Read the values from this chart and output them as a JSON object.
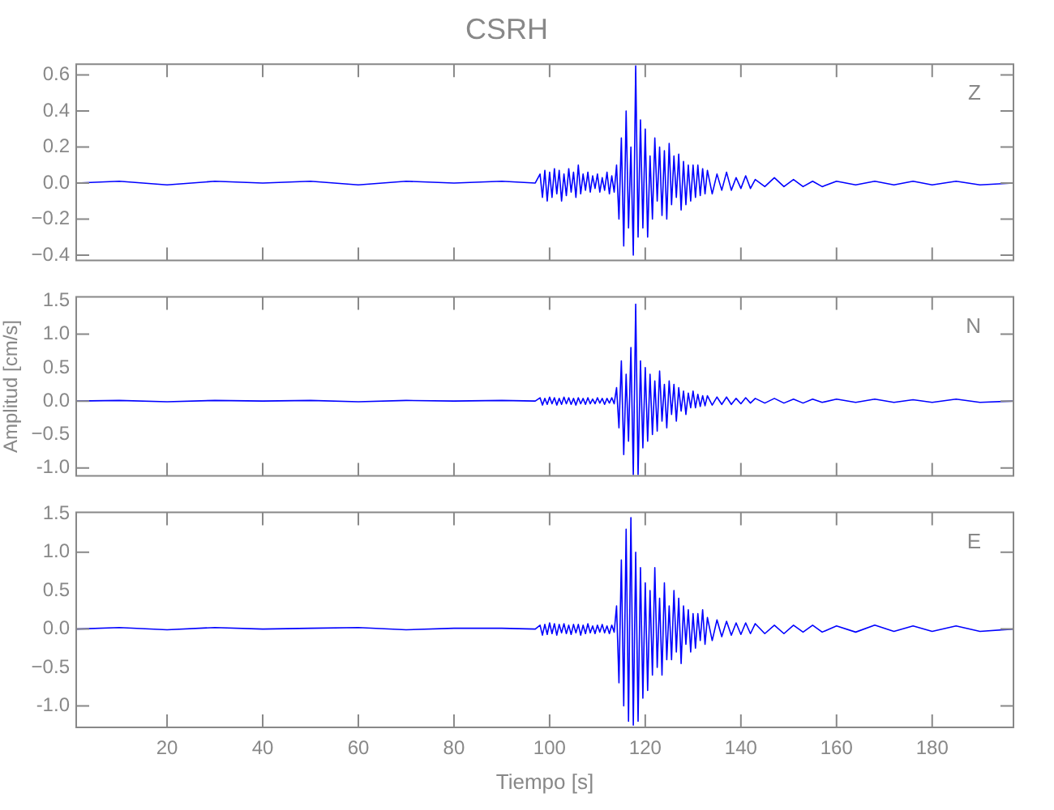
{
  "chart_data": [
    {
      "type": "line",
      "title": "CSRH",
      "annotations": [
        "Z"
      ],
      "tick_labels": "y",
      "x": [
        1,
        10,
        20,
        30,
        40,
        50,
        60,
        70,
        80,
        90,
        97,
        98,
        98.5,
        99,
        99.5,
        100,
        100.5,
        101,
        101.5,
        102,
        102.5,
        103,
        103.5,
        104,
        104.5,
        105,
        105.5,
        106,
        106.5,
        107,
        107.5,
        108,
        108.5,
        109,
        109.5,
        110,
        110.5,
        111,
        111.5,
        112,
        112.5,
        113,
        113.5,
        114,
        114.5,
        115,
        115.5,
        116,
        116.5,
        117,
        117.5,
        118,
        118.5,
        119,
        119.5,
        120,
        120.5,
        121,
        121.5,
        122,
        122.5,
        123,
        123.5,
        124,
        124.5,
        125,
        125.5,
        126,
        126.5,
        127,
        127.5,
        128,
        128.5,
        129,
        129.5,
        130,
        130.5,
        131,
        131.5,
        132,
        132.5,
        133,
        134,
        135,
        136,
        137,
        138,
        139,
        140,
        141,
        142,
        143,
        145,
        147,
        149,
        151,
        153,
        155,
        157,
        160,
        164,
        168,
        172,
        176,
        180,
        185,
        190,
        197
      ],
      "series": [
        {
          "color": "#0000ff",
          "values": [
            0,
            0.01,
            -0.01,
            0.01,
            0,
            0.01,
            -0.01,
            0.01,
            0,
            0.01,
            0,
            0.05,
            -0.08,
            0.07,
            -0.1,
            0.06,
            -0.08,
            0.08,
            -0.06,
            0.07,
            -0.1,
            0.05,
            -0.07,
            0.08,
            -0.05,
            0.06,
            -0.08,
            0.1,
            -0.06,
            0.05,
            -0.04,
            0.06,
            -0.05,
            0.04,
            -0.03,
            0.05,
            -0.05,
            0.03,
            -0.04,
            0.06,
            -0.06,
            0.04,
            -0.05,
            0.1,
            -0.2,
            0.25,
            -0.35,
            0.4,
            -0.25,
            0.2,
            -0.4,
            0.65,
            -0.3,
            0.35,
            -0.25,
            0.3,
            -0.3,
            0.15,
            -0.2,
            0.25,
            -0.1,
            0.2,
            -0.18,
            0.18,
            -0.2,
            0.22,
            -0.12,
            0.15,
            -0.08,
            0.16,
            -0.15,
            0.12,
            -0.12,
            0.1,
            -0.1,
            0.1,
            -0.08,
            0.1,
            -0.07,
            0.08,
            -0.06,
            0.07,
            -0.06,
            0.05,
            -0.04,
            0.06,
            -0.04,
            0.03,
            -0.03,
            0.04,
            -0.03,
            0.02,
            -0.02,
            0.03,
            -0.02,
            0.02,
            -0.02,
            0.01,
            -0.02,
            0.01,
            -0.01,
            0.01,
            -0.01,
            0.01,
            -0.01,
            0.01,
            -0.01,
            0
          ]
        }
      ],
      "xlim": [
        1,
        197
      ],
      "xticks": [
        20,
        40,
        60,
        80,
        100,
        120,
        140,
        160,
        180
      ],
      "ylim": [
        -0.43,
        0.66
      ],
      "yticks": [
        -0.4,
        -0.2,
        {
          "value": 0,
          "label": "0.0"
        },
        0.2,
        0.4,
        0.6
      ]
    },
    {
      "type": "line",
      "ylabel": "Amplitud [cm/s]",
      "annotations": [
        "N"
      ],
      "tick_labels": "y",
      "x": [
        1,
        10,
        20,
        30,
        40,
        50,
        60,
        70,
        80,
        90,
        97,
        98,
        98.5,
        99,
        99.5,
        100,
        100.5,
        101,
        101.5,
        102,
        102.5,
        103,
        103.5,
        104,
        104.5,
        105,
        105.5,
        106,
        106.5,
        107,
        107.5,
        108,
        108.5,
        109,
        109.5,
        110,
        110.5,
        111,
        111.5,
        112,
        112.5,
        113,
        113.5,
        114,
        114.5,
        115,
        115.5,
        116,
        116.5,
        117,
        117.5,
        118,
        118.5,
        119,
        119.5,
        120,
        120.5,
        121,
        121.5,
        122,
        122.5,
        123,
        123.5,
        124,
        124.5,
        125,
        125.5,
        126,
        126.5,
        127,
        127.5,
        128,
        128.5,
        129,
        129.5,
        130,
        130.5,
        131,
        131.5,
        132,
        132.5,
        133,
        134,
        135,
        136,
        137,
        138,
        139,
        140,
        141,
        142,
        143,
        145,
        147,
        149,
        151,
        153,
        155,
        157,
        160,
        164,
        168,
        172,
        176,
        180,
        185,
        190,
        197
      ],
      "series": [
        {
          "color": "#0000ff",
          "values": [
            0,
            0.01,
            -0.01,
            0.01,
            0,
            0.01,
            -0.01,
            0.01,
            0,
            0.01,
            0,
            0.05,
            -0.06,
            0.04,
            -0.05,
            0.06,
            -0.04,
            0.05,
            -0.06,
            0.04,
            -0.05,
            0.06,
            -0.04,
            0.05,
            -0.05,
            0.04,
            -0.06,
            0.05,
            -0.04,
            0.04,
            -0.05,
            0.05,
            -0.04,
            0.03,
            -0.04,
            0.05,
            -0.03,
            0.04,
            -0.05,
            0.04,
            -0.03,
            0.05,
            -0.04,
            0.2,
            -0.4,
            0.6,
            -0.8,
            0.4,
            -0.6,
            0.8,
            -1.1,
            1.45,
            -1.1,
            0.6,
            -0.7,
            0.5,
            -0.6,
            0.4,
            -0.5,
            0.3,
            -0.45,
            0.45,
            -0.3,
            0.25,
            -0.4,
            0.3,
            -0.2,
            0.25,
            -0.3,
            0.2,
            -0.15,
            0.15,
            -0.2,
            0.12,
            -0.1,
            0.15,
            -0.1,
            0.1,
            -0.08,
            0.08,
            -0.07,
            0.08,
            -0.06,
            0.06,
            -0.05,
            0.06,
            -0.05,
            0.04,
            -0.04,
            0.05,
            -0.03,
            0.04,
            -0.03,
            0.04,
            -0.03,
            0.03,
            -0.03,
            0.03,
            -0.02,
            0.03,
            -0.02,
            0.03,
            -0.02,
            0.02,
            -0.02,
            0.03,
            -0.02,
            0
          ]
        }
      ],
      "xlim": [
        1,
        197
      ],
      "xticks": [
        20,
        40,
        60,
        80,
        100,
        120,
        140,
        160,
        180
      ],
      "ylim": [
        -1.12,
        1.56
      ],
      "yticks": [
        {
          "value": -1,
          "label": "-1.0"
        },
        -0.5,
        {
          "value": 0,
          "label": "0.0"
        },
        0.5,
        {
          "value": 1,
          "label": "1.0"
        },
        1.5
      ]
    },
    {
      "type": "line",
      "xlabel": "Tiempo [s]",
      "annotations": [
        "E"
      ],
      "x": [
        1,
        10,
        20,
        30,
        40,
        50,
        60,
        70,
        80,
        90,
        97,
        98,
        98.5,
        99,
        99.5,
        100,
        100.5,
        101,
        101.5,
        102,
        102.5,
        103,
        103.5,
        104,
        104.5,
        105,
        105.5,
        106,
        106.5,
        107,
        107.5,
        108,
        108.5,
        109,
        109.5,
        110,
        110.5,
        111,
        111.5,
        112,
        112.5,
        113,
        113.5,
        114,
        114.5,
        115,
        115.5,
        116,
        116.5,
        117,
        117.5,
        118,
        118.5,
        119,
        119.5,
        120,
        120.5,
        121,
        121.5,
        122,
        122.5,
        123,
        123.5,
        124,
        124.5,
        125,
        125.5,
        126,
        126.5,
        127,
        127.5,
        128,
        128.5,
        129,
        129.5,
        130,
        130.5,
        131,
        131.5,
        132,
        132.5,
        133,
        134,
        135,
        136,
        137,
        138,
        139,
        140,
        141,
        142,
        143,
        145,
        147,
        149,
        151,
        153,
        155,
        157,
        160,
        164,
        168,
        172,
        176,
        180,
        185,
        190,
        197
      ],
      "series": [
        {
          "color": "#0000ff",
          "values": [
            0,
            0.02,
            -0.01,
            0.02,
            0,
            0.01,
            0.02,
            -0.01,
            0.01,
            0.01,
            0,
            0.05,
            -0.08,
            0.06,
            -0.07,
            0.08,
            -0.06,
            0.07,
            -0.08,
            0.06,
            -0.05,
            0.07,
            -0.06,
            0.05,
            -0.07,
            0.06,
            -0.05,
            0.06,
            -0.08,
            0.05,
            -0.06,
            0.07,
            -0.05,
            0.04,
            -0.06,
            0.05,
            -0.04,
            0.06,
            -0.05,
            0.04,
            -0.06,
            0.05,
            -0.04,
            0.3,
            -0.7,
            0.9,
            -1,
            1.3,
            -1.2,
            1.45,
            -1.25,
            1,
            -1.2,
            0.8,
            -0.9,
            0.6,
            -0.8,
            0.5,
            -0.6,
            0.8,
            -0.5,
            0.4,
            -0.6,
            0.6,
            -0.4,
            0.3,
            -0.4,
            0.5,
            -0.3,
            0.4,
            -0.45,
            0.3,
            -0.2,
            0.25,
            -0.3,
            0.2,
            -0.25,
            0.2,
            -0.15,
            0.25,
            -0.2,
            0.15,
            -0.15,
            0.12,
            -0.1,
            0.1,
            -0.08,
            0.08,
            -0.07,
            0.08,
            -0.06,
            0.07,
            -0.06,
            0.05,
            -0.06,
            0.05,
            -0.04,
            0.05,
            -0.04,
            0.04,
            -0.04,
            0.05,
            -0.03,
            0.04,
            -0.03,
            0.04,
            -0.03,
            0
          ]
        }
      ],
      "xlim": [
        1,
        197
      ],
      "xticks": [
        20,
        40,
        60,
        80,
        100,
        120,
        140,
        160,
        180
      ],
      "ylim": [
        -1.28,
        1.52
      ],
      "yticks": [
        {
          "value": -1,
          "label": "-1.0"
        },
        -0.5,
        {
          "value": 0,
          "label": "0.0"
        },
        0.5,
        {
          "value": 1,
          "label": "1.0"
        },
        1.5
      ]
    }
  ]
}
